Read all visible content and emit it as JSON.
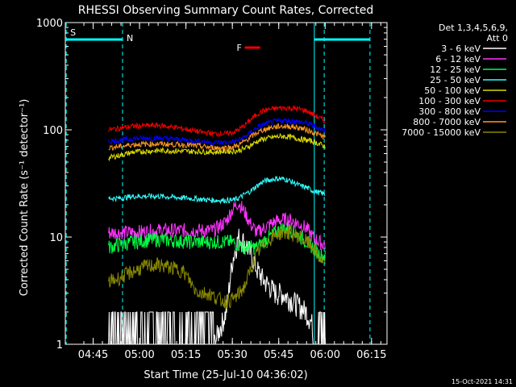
{
  "chart_data": {
    "type": "line",
    "title": "RHESSI Observing Summary Count Rates, Corrected",
    "xlabel": "Start Time (25-Jul-10 04:36:02)",
    "ylabel": "Corrected Count Rate (s⁻¹ detector⁻¹)",
    "yscale": "log",
    "ylim": [
      1,
      1000
    ],
    "y_ticks": [
      {
        "value": 1,
        "label": "1"
      },
      {
        "value": 10,
        "label": "10"
      },
      {
        "value": 100,
        "label": "100"
      },
      {
        "value": 1000,
        "label": "1000"
      }
    ],
    "xlim_minutes": [
      0,
      104
    ],
    "x_ticks": [
      {
        "minute": 9,
        "label": "04:45"
      },
      {
        "minute": 24,
        "label": "05:00"
      },
      {
        "minute": 39,
        "label": "05:15"
      },
      {
        "minute": 54,
        "label": "05:30"
      },
      {
        "minute": 69,
        "label": "05:45"
      },
      {
        "minute": 84,
        "label": "06:00"
      },
      {
        "minute": 99,
        "label": "06:15"
      }
    ],
    "legend_header": [
      "Det 1,3,4,5,6,9,",
      "Att 0"
    ],
    "legend_position": "right",
    "flags": {
      "s_label": "S",
      "n_label": "N",
      "f_label": "F",
      "day_segments": [
        [
          0,
          18.5
        ],
        [
          80.5,
          98.5
        ]
      ],
      "f_segment": [
        58,
        63
      ]
    },
    "dashed_lines_minutes": [
      0.3,
      18.5,
      83.7,
      98.5
    ],
    "solid_lines_minutes": [
      80.5
    ],
    "data_start_minute": 14,
    "data_end_minute": 84.2,
    "series": [
      {
        "name": "3 - 6 keV",
        "color": "#ffffff",
        "points": [
          [
            14,
            1
          ],
          [
            18,
            1
          ],
          [
            25,
            1
          ],
          [
            30,
            1
          ],
          [
            40,
            1
          ],
          [
            46,
            1
          ],
          [
            48,
            1
          ],
          [
            52,
            2
          ],
          [
            54,
            6
          ],
          [
            56,
            10
          ],
          [
            58,
            9
          ],
          [
            60,
            7
          ],
          [
            62,
            5
          ],
          [
            64,
            4
          ],
          [
            66,
            3.5
          ],
          [
            68,
            3
          ],
          [
            70,
            3
          ],
          [
            74,
            2.5
          ],
          [
            78,
            2
          ],
          [
            80,
            1.5
          ],
          [
            82,
            1
          ],
          [
            84,
            1
          ]
        ]
      },
      {
        "name": "6 - 12 keV",
        "color": "#ff33ff",
        "points": [
          [
            14,
            11
          ],
          [
            18,
            11
          ],
          [
            22,
            11
          ],
          [
            30,
            11.5
          ],
          [
            40,
            11.5
          ],
          [
            48,
            11.5
          ],
          [
            52,
            14
          ],
          [
            54,
            18
          ],
          [
            56,
            21
          ],
          [
            58,
            17
          ],
          [
            60,
            13
          ],
          [
            62,
            11
          ],
          [
            64,
            12
          ],
          [
            66,
            13
          ],
          [
            68,
            14
          ],
          [
            70,
            14.5
          ],
          [
            72,
            14.5
          ],
          [
            74,
            14
          ],
          [
            76,
            13
          ],
          [
            78,
            12
          ],
          [
            80,
            10
          ],
          [
            82,
            9
          ],
          [
            84,
            8.5
          ]
        ]
      },
      {
        "name": "12 - 25 keV",
        "color": "#00ff44",
        "points": [
          [
            14,
            8
          ],
          [
            18,
            8.5
          ],
          [
            22,
            9
          ],
          [
            30,
            9.5
          ],
          [
            40,
            9
          ],
          [
            48,
            9
          ],
          [
            52,
            9
          ],
          [
            54,
            9
          ],
          [
            56,
            8.5
          ],
          [
            58,
            8
          ],
          [
            60,
            8
          ],
          [
            62,
            8
          ],
          [
            64,
            9
          ],
          [
            66,
            10
          ],
          [
            68,
            11
          ],
          [
            70,
            12
          ],
          [
            72,
            12
          ],
          [
            74,
            11
          ],
          [
            76,
            10
          ],
          [
            78,
            9
          ],
          [
            80,
            8
          ],
          [
            82,
            7
          ],
          [
            84,
            6.5
          ]
        ]
      },
      {
        "name": "25 - 50 keV",
        "color": "#33ffff",
        "points": [
          [
            14,
            23
          ],
          [
            18,
            23
          ],
          [
            22,
            24
          ],
          [
            30,
            24
          ],
          [
            40,
            23
          ],
          [
            48,
            22
          ],
          [
            52,
            22
          ],
          [
            54,
            22
          ],
          [
            56,
            23
          ],
          [
            58,
            25
          ],
          [
            60,
            27
          ],
          [
            62,
            30
          ],
          [
            64,
            33
          ],
          [
            66,
            34
          ],
          [
            68,
            35
          ],
          [
            70,
            35
          ],
          [
            72,
            34
          ],
          [
            74,
            32
          ],
          [
            76,
            30
          ],
          [
            78,
            29
          ],
          [
            80,
            27
          ],
          [
            82,
            26
          ],
          [
            84,
            25
          ]
        ]
      },
      {
        "name": "50 - 100 keV",
        "color": "#dddd00",
        "points": [
          [
            14,
            55
          ],
          [
            18,
            58
          ],
          [
            22,
            62
          ],
          [
            30,
            64
          ],
          [
            40,
            63
          ],
          [
            48,
            62
          ],
          [
            52,
            63
          ],
          [
            54,
            63
          ],
          [
            56,
            64
          ],
          [
            58,
            67
          ],
          [
            60,
            72
          ],
          [
            62,
            78
          ],
          [
            64,
            82
          ],
          [
            66,
            84
          ],
          [
            68,
            86
          ],
          [
            70,
            87
          ],
          [
            72,
            86
          ],
          [
            74,
            84
          ],
          [
            76,
            82
          ],
          [
            78,
            80
          ],
          [
            80,
            78
          ],
          [
            82,
            74
          ],
          [
            84,
            70
          ]
        ]
      },
      {
        "name": "100 - 300 keV",
        "color": "#ee0000",
        "points": [
          [
            14,
            100
          ],
          [
            18,
            104
          ],
          [
            22,
            108
          ],
          [
            30,
            110
          ],
          [
            36,
            105
          ],
          [
            40,
            100
          ],
          [
            44,
            95
          ],
          [
            48,
            92
          ],
          [
            52,
            92
          ],
          [
            54,
            94
          ],
          [
            56,
            100
          ],
          [
            58,
            110
          ],
          [
            60,
            125
          ],
          [
            62,
            140
          ],
          [
            64,
            150
          ],
          [
            66,
            155
          ],
          [
            68,
            158
          ],
          [
            70,
            160
          ],
          [
            72,
            160
          ],
          [
            74,
            158
          ],
          [
            76,
            155
          ],
          [
            78,
            150
          ],
          [
            80,
            140
          ],
          [
            82,
            130
          ],
          [
            84,
            120
          ]
        ]
      },
      {
        "name": "300 - 800 keV",
        "color": "#0000ff",
        "points": [
          [
            14,
            78
          ],
          [
            18,
            80
          ],
          [
            22,
            83
          ],
          [
            30,
            84
          ],
          [
            40,
            80
          ],
          [
            48,
            76
          ],
          [
            52,
            76
          ],
          [
            54,
            77
          ],
          [
            56,
            80
          ],
          [
            58,
            86
          ],
          [
            60,
            95
          ],
          [
            62,
            105
          ],
          [
            64,
            112
          ],
          [
            66,
            116
          ],
          [
            68,
            120
          ],
          [
            70,
            122
          ],
          [
            72,
            122
          ],
          [
            74,
            120
          ],
          [
            76,
            118
          ],
          [
            78,
            115
          ],
          [
            80,
            110
          ],
          [
            82,
            104
          ],
          [
            84,
            98
          ]
        ]
      },
      {
        "name": "800 - 7000 keV",
        "color": "#ff9922",
        "points": [
          [
            14,
            68
          ],
          [
            18,
            70
          ],
          [
            22,
            73
          ],
          [
            30,
            74
          ],
          [
            40,
            72
          ],
          [
            48,
            68
          ],
          [
            52,
            68
          ],
          [
            54,
            69
          ],
          [
            56,
            72
          ],
          [
            58,
            78
          ],
          [
            60,
            86
          ],
          [
            62,
            94
          ],
          [
            64,
            100
          ],
          [
            66,
            104
          ],
          [
            68,
            107
          ],
          [
            70,
            108
          ],
          [
            72,
            108
          ],
          [
            74,
            106
          ],
          [
            76,
            104
          ],
          [
            78,
            100
          ],
          [
            80,
            95
          ],
          [
            82,
            90
          ],
          [
            84,
            85
          ]
        ]
      },
      {
        "name": "7000 - 15000 keV",
        "color": "#888800",
        "points": [
          [
            14,
            3.8
          ],
          [
            18,
            4.2
          ],
          [
            22,
            4.8
          ],
          [
            26,
            5.3
          ],
          [
            30,
            5.5
          ],
          [
            34,
            5.2
          ],
          [
            38,
            4.8
          ],
          [
            40,
            4
          ],
          [
            42,
            3.2
          ],
          [
            44,
            3
          ],
          [
            46,
            3
          ],
          [
            48,
            2.8
          ],
          [
            50,
            2.6
          ],
          [
            52,
            2.5
          ],
          [
            54,
            2.6
          ],
          [
            56,
            2.9
          ],
          [
            58,
            3.5
          ],
          [
            60,
            5
          ],
          [
            62,
            7
          ],
          [
            64,
            8.5
          ],
          [
            66,
            9.5
          ],
          [
            68,
            10.5
          ],
          [
            70,
            11
          ],
          [
            72,
            11
          ],
          [
            74,
            10.5
          ],
          [
            76,
            10
          ],
          [
            78,
            9
          ],
          [
            80,
            8
          ],
          [
            82,
            6.5
          ],
          [
            84,
            5.5
          ]
        ]
      }
    ]
  },
  "footer": {
    "date_stamp": "15-Oct-2021 14:31"
  }
}
